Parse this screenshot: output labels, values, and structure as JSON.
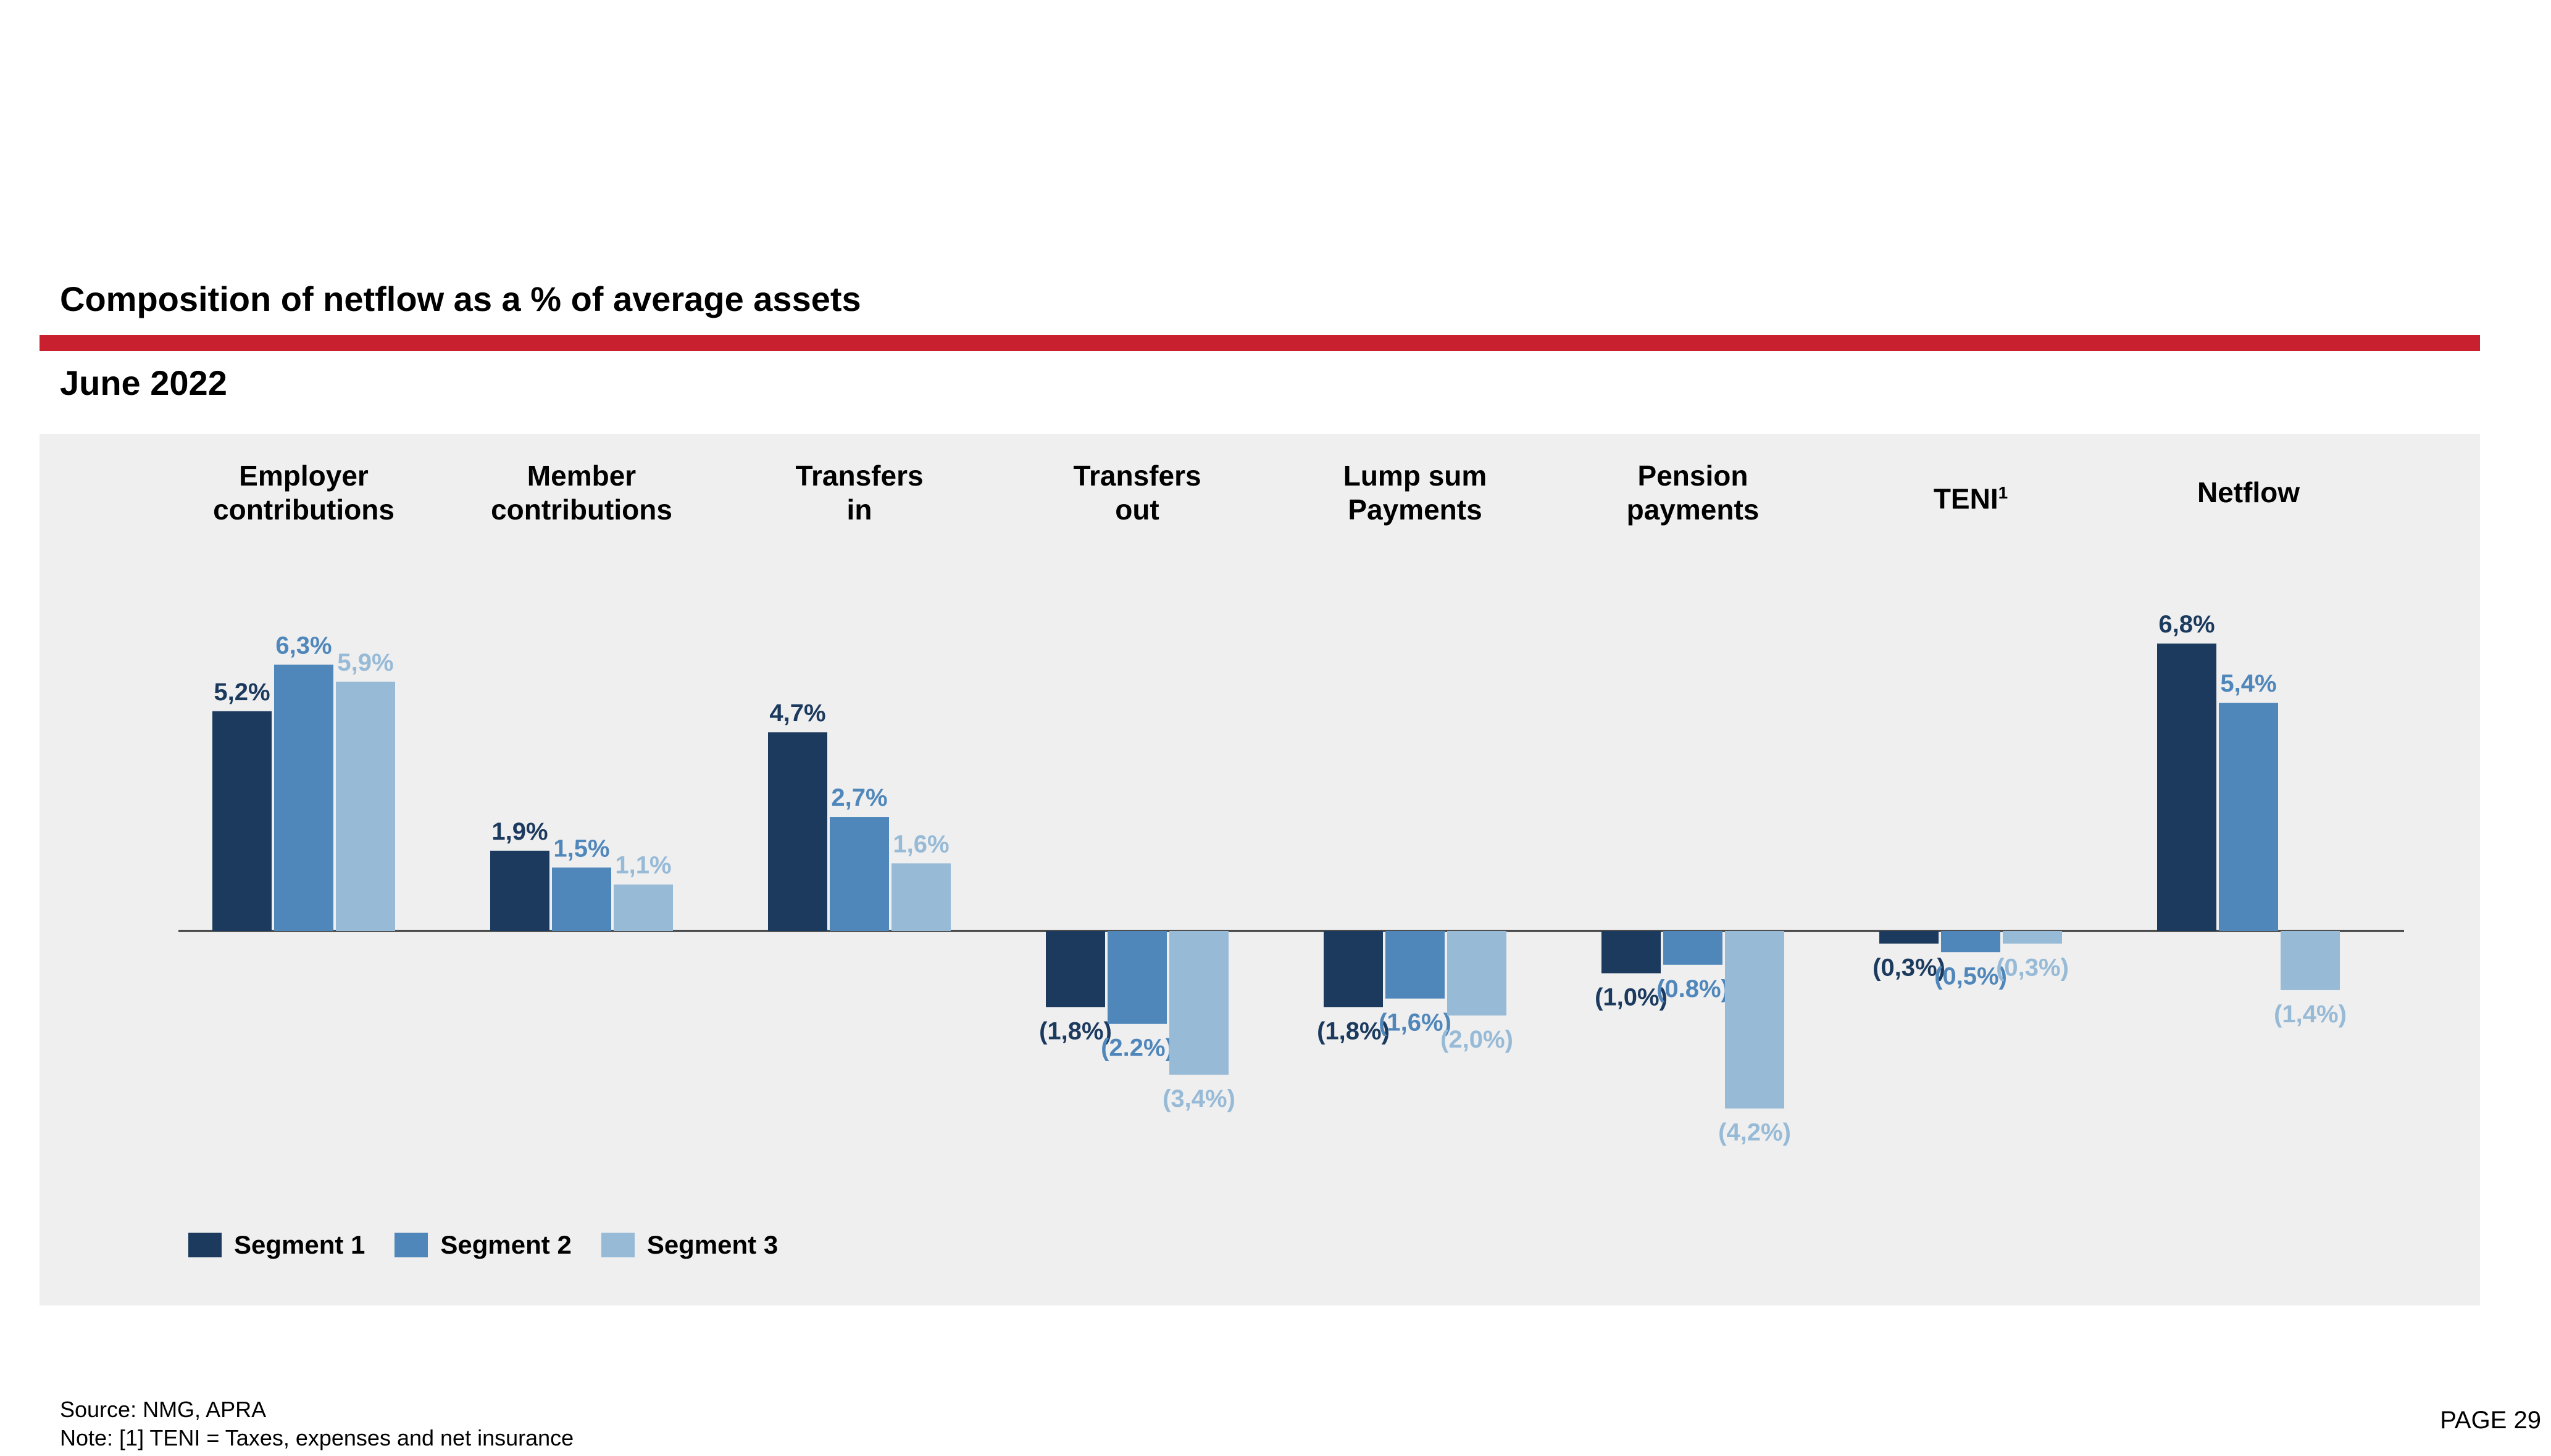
{
  "header": {
    "title": "Composition of netflow as a % of average assets",
    "subtitle": "June 2022",
    "accent_color": "#c8202f"
  },
  "legend": {
    "items": [
      {
        "label": "Segment 1",
        "color": "#1b3a5e"
      },
      {
        "label": "Segment 2",
        "color": "#5087bb"
      },
      {
        "label": "Segment 3",
        "color": "#97bad7"
      }
    ]
  },
  "chart_data": {
    "type": "bar",
    "title": "Composition of netflow as a % of average assets",
    "subtitle": "June 2022",
    "categories": [
      {
        "line1": "Employer",
        "line2": "contributions"
      },
      {
        "line1": "Member",
        "line2": "contributions"
      },
      {
        "line1": "Transfers",
        "line2": "in"
      },
      {
        "line1": "Transfers",
        "line2": "out"
      },
      {
        "line1": "Lump sum",
        "line2": "Payments"
      },
      {
        "line1": "Pension",
        "line2": "payments"
      },
      {
        "line1": "TENI",
        "line2": "",
        "superscript": "1"
      },
      {
        "line1": "Netflow",
        "line2": ""
      }
    ],
    "series": [
      {
        "name": "Segment 1",
        "color": "#1b3a5e",
        "values": [
          5.2,
          1.9,
          4.7,
          -1.8,
          -1.8,
          -1.0,
          -0.3,
          6.8
        ],
        "labels": [
          "5,2%",
          "1,9%",
          "4,7%",
          "(1,8%)",
          "(1,8%)",
          "(1,0%)",
          "(0,3%)",
          "6,8%"
        ]
      },
      {
        "name": "Segment 2",
        "color": "#5087bb",
        "values": [
          6.3,
          1.5,
          2.7,
          -2.2,
          -1.6,
          -0.8,
          -0.5,
          5.4
        ],
        "labels": [
          "6,3%",
          "1,5%",
          "2,7%",
          "(2.2%)",
          "(1,6%)",
          "(0.8%)",
          "(0,5%)",
          "5,4%"
        ]
      },
      {
        "name": "Segment 3",
        "color": "#97bad7",
        "values": [
          5.9,
          1.1,
          1.6,
          -3.4,
          -2.0,
          -4.2,
          -0.3,
          -1.4
        ],
        "labels": [
          "5,9%",
          "1,1%",
          "1,6%",
          "(3,4%)",
          "(2,0%)",
          "(4,2%)",
          "(0,3%)",
          "(1,4%)"
        ]
      }
    ],
    "ylabel": "",
    "xlabel": "",
    "ylim": [
      -4.5,
      7.0
    ],
    "grid": false,
    "legend_position": "bottom-left"
  },
  "footer": {
    "source": "Source: NMG, APRA",
    "note": "Note: [1] TENI = Taxes, expenses and net insurance",
    "page": "PAGE 29"
  }
}
